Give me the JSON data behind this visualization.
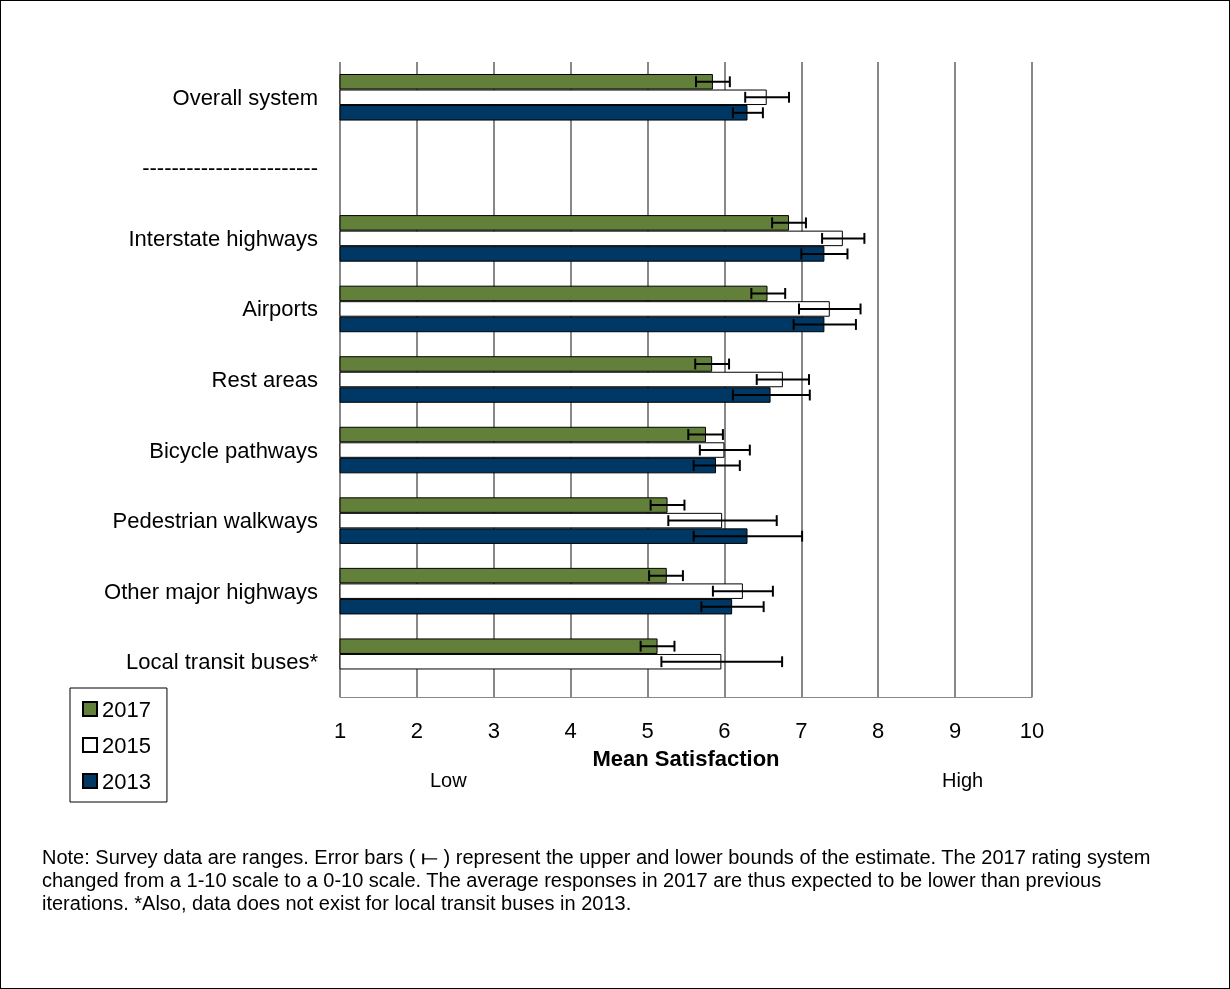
{
  "chart_data": {
    "type": "bar",
    "orientation": "horizontal",
    "categories": [
      "Overall system",
      "------------------------",
      "Interstate highways",
      "Airports",
      "Rest areas",
      "Bicycle pathways",
      "Pedestrian walkways",
      "Other major highways",
      "Local transit buses*"
    ],
    "series": [
      {
        "name": "2017",
        "color": "#63803a",
        "values": [
          5.85,
          null,
          6.84,
          6.56,
          5.84,
          5.76,
          5.26,
          5.25,
          5.13
        ],
        "errors": [
          [
            5.63,
            6.07
          ],
          null,
          [
            6.62,
            7.06
          ],
          [
            6.35,
            6.79
          ],
          [
            5.62,
            6.06
          ],
          [
            5.53,
            5.98
          ],
          [
            5.04,
            5.48
          ],
          [
            5.02,
            5.46
          ],
          [
            4.91,
            5.35
          ]
        ]
      },
      {
        "name": "2015",
        "color": "#ffffff",
        "values": [
          6.55,
          null,
          7.54,
          7.37,
          6.76,
          6.0,
          5.97,
          6.24,
          5.96
        ],
        "errors": [
          [
            6.27,
            6.84
          ],
          null,
          [
            7.27,
            7.82
          ],
          [
            6.97,
            7.77
          ],
          [
            6.42,
            7.1
          ],
          [
            5.68,
            6.33
          ],
          [
            5.27,
            6.68
          ],
          [
            5.85,
            6.63
          ],
          [
            5.18,
            6.75
          ]
        ]
      },
      {
        "name": "2013",
        "color": "#003865",
        "values": [
          6.3,
          null,
          7.3,
          7.3,
          6.6,
          5.89,
          6.3,
          6.1,
          null
        ],
        "errors": [
          [
            6.11,
            6.5
          ],
          null,
          [
            7.0,
            7.6
          ],
          [
            6.9,
            7.71
          ],
          [
            6.11,
            7.11
          ],
          [
            5.6,
            6.2
          ],
          [
            5.6,
            7.01
          ],
          [
            5.7,
            6.51
          ],
          null
        ]
      }
    ],
    "xlim": [
      1,
      10
    ],
    "xticks": [
      1,
      2,
      3,
      4,
      5,
      6,
      7,
      8,
      9,
      10
    ],
    "xlabel": "Mean Satisfaction",
    "grid": "x",
    "legend": "bottom left",
    "annotations": [
      "Low",
      "High",
      "Note: Survey data are ranges. Error bars ( ⟝ ) represent the upper and lower bounds of the estimate. The 2017 rating system changed from a 1-10 scale to a 0-10 scale. The average responses in 2017 are thus expected to be lower than previous iterations. *Also, data does not exist for local transit buses in 2013."
    ]
  }
}
